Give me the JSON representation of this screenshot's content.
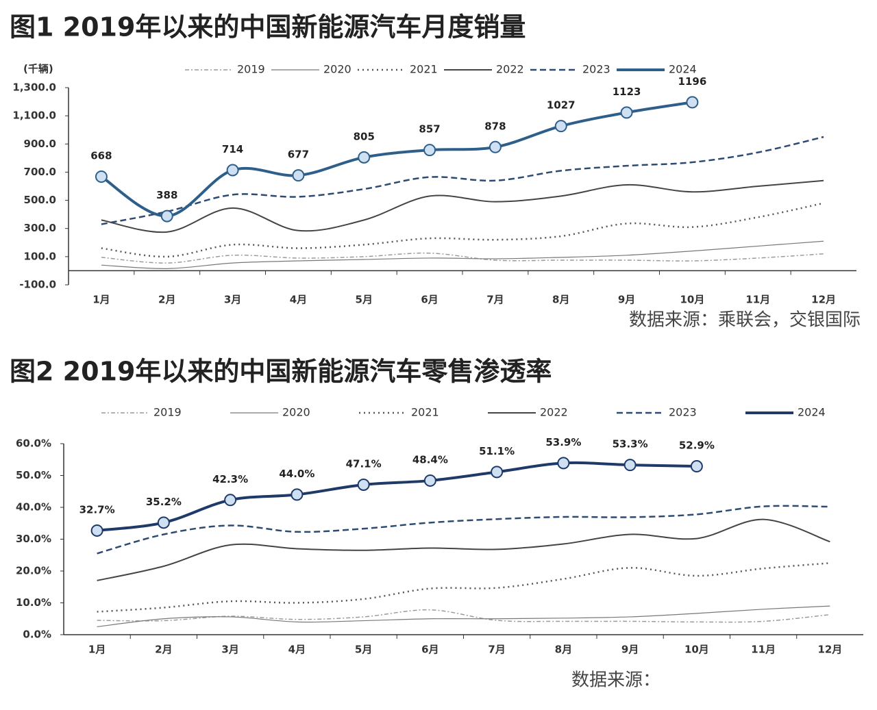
{
  "chart_data": [
    {
      "type": "line",
      "title": "图1  2019年以来的中国新能源汽车月度销量",
      "y_label": "(千辆)",
      "source": "数据来源：乘联会，交银国际",
      "categories": [
        "1月",
        "2月",
        "3月",
        "4月",
        "5月",
        "6月",
        "7月",
        "8月",
        "9月",
        "10月",
        "11月",
        "12月"
      ],
      "ylim": [
        -100,
        1300
      ],
      "yticks": [
        {
          "value": -100,
          "label": "-100.0"
        },
        {
          "value": 100,
          "label": "100.0"
        },
        {
          "value": 300,
          "label": "300.0"
        },
        {
          "value": 500,
          "label": "500.0"
        },
        {
          "value": 700,
          "label": "700.0"
        },
        {
          "value": 900,
          "label": "900.0"
        },
        {
          "value": 1100,
          "label": "1,100.0"
        },
        {
          "value": 1300,
          "label": "1,300.0"
        }
      ],
      "series": [
        {
          "name": "2019",
          "color": "#9a9a9a",
          "style": "dash-dot",
          "values": [
            95,
            55,
            110,
            90,
            100,
            125,
            75,
            75,
            75,
            70,
            90,
            120
          ]
        },
        {
          "name": "2020",
          "color": "#777777",
          "style": "thin",
          "values": [
            40,
            15,
            55,
            70,
            80,
            90,
            85,
            95,
            110,
            140,
            175,
            210
          ]
        },
        {
          "name": "2021",
          "color": "#555555",
          "style": "dotted",
          "values": [
            160,
            100,
            185,
            160,
            185,
            230,
            220,
            245,
            335,
            310,
            380,
            480
          ]
        },
        {
          "name": "2022",
          "color": "#444444",
          "style": "solid",
          "values": [
            360,
            275,
            445,
            285,
            360,
            530,
            490,
            530,
            610,
            560,
            600,
            640
          ]
        },
        {
          "name": "2023",
          "color": "#2c4a72",
          "style": "dashed",
          "values": [
            330,
            420,
            540,
            525,
            580,
            665,
            640,
            710,
            745,
            770,
            840,
            950
          ]
        },
        {
          "name": "2024",
          "color": "#2e5f8a",
          "style": "bold",
          "values": [
            668,
            388,
            714,
            677,
            805,
            857,
            878,
            1027,
            1123,
            1196,
            null,
            null
          ]
        }
      ]
    },
    {
      "type": "line",
      "title": "图2  2019年以来的中国新能源汽车零售渗透率",
      "source": "数据来源：",
      "categories": [
        "1月",
        "2月",
        "3月",
        "4月",
        "5月",
        "6月",
        "7月",
        "8月",
        "9月",
        "10月",
        "11月",
        "12月"
      ],
      "ylim": [
        0,
        60
      ],
      "yticks": [
        {
          "value": 0,
          "label": "0.0%"
        },
        {
          "value": 10,
          "label": "10.0%"
        },
        {
          "value": 20,
          "label": "20.0%"
        },
        {
          "value": 30,
          "label": "30.0%"
        },
        {
          "value": 40,
          "label": "40.0%"
        },
        {
          "value": 50,
          "label": "50.0%"
        },
        {
          "value": 60,
          "label": "60.0%"
        }
      ],
      "series": [
        {
          "name": "2019",
          "color": "#9a9a9a",
          "style": "dash-dot",
          "values": [
            4.5,
            4.4,
            5.8,
            4.8,
            5.6,
            7.8,
            4.5,
            4.2,
            4.2,
            4.0,
            4.2,
            6.3
          ]
        },
        {
          "name": "2020",
          "color": "#777777",
          "style": "thin",
          "values": [
            2.5,
            5.0,
            5.6,
            4.0,
            4.4,
            5.0,
            5.0,
            5.2,
            5.6,
            6.7,
            8.0,
            9.0
          ]
        },
        {
          "name": "2021",
          "color": "#555555",
          "style": "dotted",
          "values": [
            7.2,
            8.5,
            10.5,
            10,
            11.2,
            14.5,
            14.7,
            17.5,
            21,
            18.5,
            20.8,
            22.5
          ]
        },
        {
          "name": "2022",
          "color": "#444444",
          "style": "solid",
          "values": [
            17,
            21.5,
            28.2,
            27,
            26.5,
            27.2,
            26.8,
            28.5,
            31.5,
            30.2,
            36.2,
            29.2
          ]
        },
        {
          "name": "2023",
          "color": "#2c4a72",
          "style": "dashed",
          "values": [
            25.5,
            31.5,
            34.3,
            32.3,
            33.3,
            35.2,
            36.3,
            37.0,
            36.9,
            37.8,
            40.3,
            40.2
          ]
        },
        {
          "name": "2024",
          "color": "#1f3a68",
          "style": "bold",
          "values": [
            32.7,
            35.2,
            42.3,
            44.0,
            47.1,
            48.4,
            51.1,
            53.9,
            53.3,
            52.9,
            null,
            null
          ],
          "value_labels": [
            "32.7%",
            "35.2%",
            "42.3%",
            "44.0%",
            "47.1%",
            "48.4%",
            "51.1%",
            "53.9%",
            "53.3%",
            "52.9%",
            null,
            null
          ]
        }
      ]
    }
  ]
}
